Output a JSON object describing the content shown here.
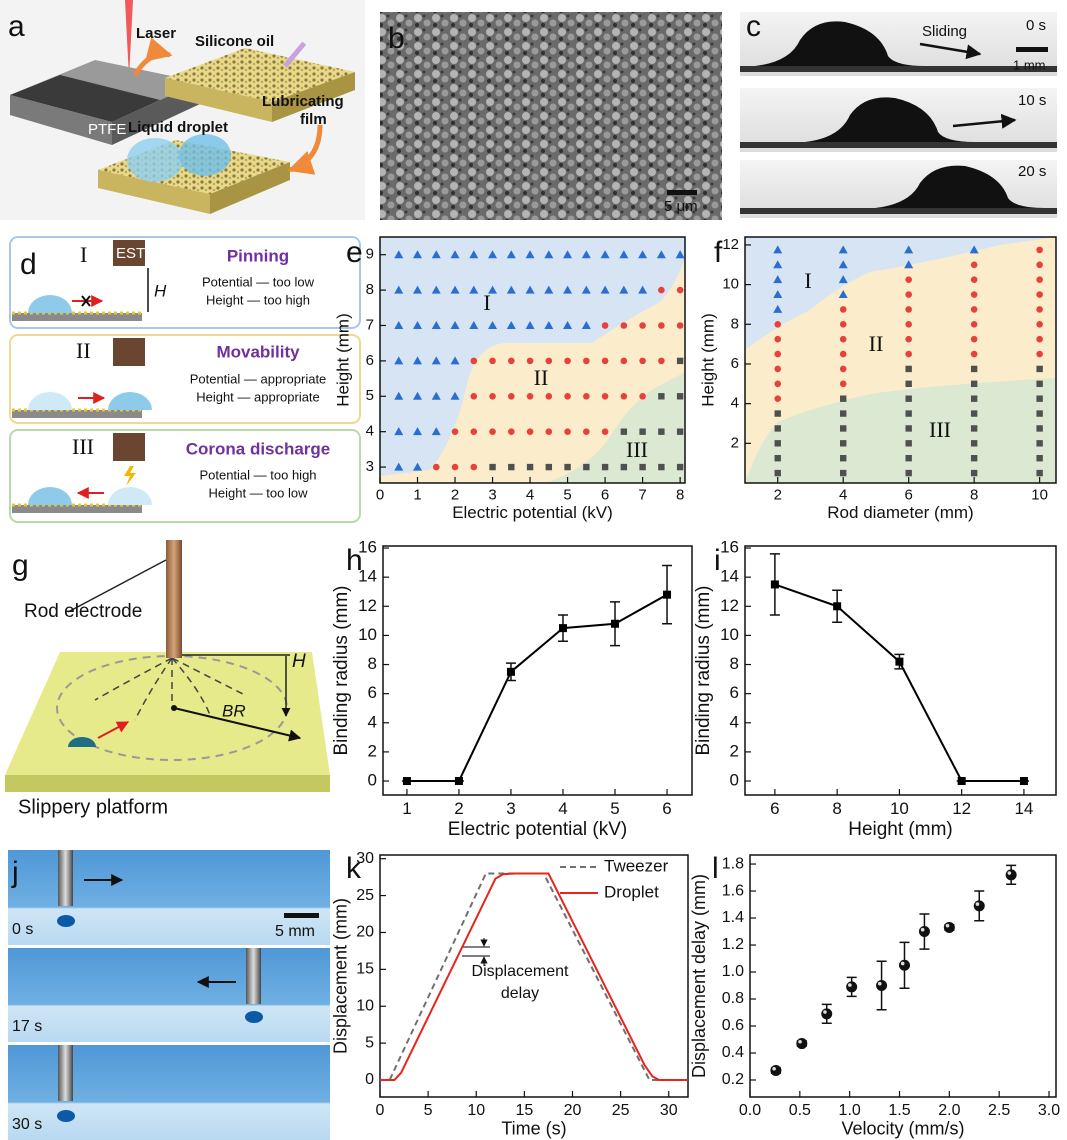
{
  "panel_labels": [
    "a",
    "b",
    "c",
    "d",
    "e",
    "f",
    "g",
    "h",
    "i",
    "j",
    "k",
    "l"
  ],
  "panels": {
    "a": {
      "laser": "Laser",
      "ptfe": "PTFE",
      "oil": "Silicone oil",
      "lubricating": [
        "Lubricating",
        "film"
      ],
      "droplet": "Liquid droplet"
    },
    "b": {
      "scale": "5 μm"
    },
    "c": {
      "sliding": "Sliding",
      "scale": "1 mm",
      "times": [
        "0 s",
        "10 s",
        "20 s"
      ]
    },
    "d": {
      "est": "EST",
      "h": "H",
      "rows": [
        {
          "numeral": "I",
          "title": "Pinning",
          "lines": [
            "Potential — too low",
            "Height — too high"
          ]
        },
        {
          "numeral": "II",
          "title": "Movability",
          "lines": [
            "Potential — appropriate",
            "Height — appropriate"
          ]
        },
        {
          "numeral": "III",
          "title": "Corona discharge",
          "lines": [
            "Potential — too high",
            "Height — too low"
          ]
        }
      ]
    },
    "g": {
      "rod": "Rod electrode",
      "h": "H",
      "br": "BR",
      "platform": "Slippery platform"
    },
    "j": {
      "times": [
        "0 s",
        "17 s",
        "30 s"
      ],
      "scale": "5 mm"
    }
  },
  "chart_data": [
    {
      "type": "scatter",
      "xlabel": "Electric potential (kV)",
      "ylabel": "Height (mm)",
      "xlim": [
        0,
        8.13
      ],
      "ylim": [
        2.55,
        9.5
      ],
      "xticks": [
        0,
        1,
        2,
        3,
        4,
        5,
        6,
        7,
        8
      ],
      "yticks": [
        3,
        4,
        5,
        6,
        7,
        8,
        9
      ],
      "annotations": [
        "I",
        "II",
        "III"
      ],
      "series": [
        {
          "marker": "triangle",
          "color": "#2a6fd0",
          "x": [
            0.5,
            1,
            1.5,
            2,
            2.5,
            3,
            3.5,
            4,
            4.5,
            5,
            5.5,
            6,
            6.5,
            7,
            7.5,
            8,
            0.5,
            1,
            1.5,
            2,
            2.5,
            3,
            3.5,
            4,
            4.5,
            5,
            5.5,
            6,
            6.5,
            7,
            0.5,
            1,
            1.5,
            2,
            2.5,
            3,
            3.5,
            4,
            4.5,
            5,
            5.5,
            0.5,
            1,
            1.5,
            2,
            0.5,
            1,
            1.5,
            2,
            0.5,
            1,
            1.5,
            0.5,
            1
          ],
          "values": [
            9,
            9,
            9,
            9,
            9,
            9,
            9,
            9,
            9,
            9,
            9,
            9,
            9,
            9,
            9,
            9,
            8,
            8,
            8,
            8,
            8,
            8,
            8,
            8,
            8,
            8,
            8,
            8,
            8,
            8,
            7,
            7,
            7,
            7,
            7,
            7,
            7,
            7,
            7,
            7,
            7,
            6,
            6,
            6,
            6,
            5,
            5,
            5,
            5,
            4,
            4,
            4,
            3,
            3
          ]
        },
        {
          "marker": "circle",
          "color": "#e8403a",
          "x": [
            7.5,
            8,
            6,
            6.5,
            7,
            7.5,
            8,
            2.5,
            3,
            3.5,
            4,
            4.5,
            5,
            5.5,
            6,
            6.5,
            7,
            7.5,
            2.5,
            3,
            3.5,
            4,
            4.5,
            5,
            5.5,
            6,
            6.5,
            7,
            2,
            2.5,
            3,
            3.5,
            4,
            4.5,
            5,
            5.5,
            6,
            1.5,
            2,
            2.5
          ],
          "values": [
            8,
            8,
            7,
            7,
            7,
            7,
            7,
            6,
            6,
            6,
            6,
            6,
            6,
            6,
            6,
            6,
            6,
            6,
            5,
            5,
            5,
            5,
            5,
            5,
            5,
            5,
            5,
            5,
            4,
            4,
            4,
            4,
            4,
            4,
            4,
            4,
            4,
            3,
            3,
            3
          ]
        },
        {
          "marker": "square",
          "color": "#505050",
          "x": [
            8,
            7.5,
            8,
            6.5,
            7,
            7.5,
            8,
            3,
            3.5,
            4,
            4.5,
            5,
            5.5,
            6,
            6.5,
            7,
            7.5,
            8
          ],
          "values": [
            6,
            5,
            5,
            4,
            4,
            4,
            4,
            3,
            3,
            3,
            3,
            3,
            3,
            3,
            3,
            3,
            3,
            3
          ]
        }
      ]
    },
    {
      "type": "scatter",
      "xlabel": "Rod diameter (mm)",
      "ylabel": "Height (mm)",
      "xlim": [
        1,
        10.5
      ],
      "ylim": [
        0,
        12.4
      ],
      "xticks": [
        2,
        4,
        6,
        8,
        10
      ],
      "yticks": [
        2,
        4,
        6,
        8,
        10,
        12
      ],
      "annotations": [
        "I",
        "II",
        "III"
      ],
      "series": [
        {
          "marker": "triangle",
          "color": "#2a6fd0",
          "x": [
            2,
            2,
            2,
            2,
            2,
            4,
            4,
            4,
            4,
            6,
            6,
            8
          ],
          "values": [
            8.75,
            9.5,
            10.25,
            11,
            11.75,
            9.5,
            10.25,
            11,
            11.75,
            11,
            11.75,
            11.75
          ]
        },
        {
          "marker": "circle",
          "color": "#e8403a",
          "x": [
            2,
            2,
            2,
            2,
            2,
            2,
            4,
            4,
            4,
            4,
            4,
            4,
            6,
            6,
            6,
            6,
            6,
            6,
            8,
            8,
            8,
            8,
            8,
            8,
            8,
            10,
            10,
            10,
            10,
            10,
            10,
            10,
            10
          ],
          "values": [
            4.25,
            5,
            5.75,
            6.5,
            7.25,
            8,
            5,
            5.75,
            6.5,
            7.25,
            8,
            8.75,
            6.5,
            7.25,
            8,
            8.75,
            9.5,
            10.25,
            6.5,
            7.25,
            8,
            8.75,
            9.5,
            10.25,
            11,
            6.5,
            7.25,
            8,
            8.75,
            9.5,
            10.25,
            11,
            11.75
          ]
        },
        {
          "marker": "square",
          "color": "#505050",
          "x": [
            2,
            2,
            2,
            2,
            2,
            4,
            4,
            4,
            4,
            4,
            4,
            6,
            6,
            6,
            6,
            6,
            6,
            6,
            6,
            8,
            8,
            8,
            8,
            8,
            8,
            8,
            8,
            10,
            10,
            10,
            10,
            10,
            10,
            10,
            10
          ],
          "values": [
            0.5,
            1.25,
            2,
            2.75,
            3.5,
            0.5,
            1.25,
            2,
            2.75,
            3.5,
            4.25,
            0.5,
            1.25,
            2,
            2.75,
            3.5,
            4.25,
            5,
            5.75,
            0.5,
            1.25,
            2,
            2.75,
            3.5,
            4.25,
            5,
            5.75,
            0.5,
            1.25,
            2,
            2.75,
            3.5,
            4.25,
            5,
            5.75
          ]
        }
      ]
    },
    {
      "type": "line",
      "xlabel": "Electric potential (kV)",
      "ylabel": "Binding radius (mm)",
      "xlim": [
        0.54,
        6.48
      ],
      "ylim": [
        -0.96,
        16.14
      ],
      "xticks": [
        1,
        2,
        3,
        4,
        5,
        6
      ],
      "yticks": [
        0,
        2,
        4,
        6,
        8,
        10,
        12,
        14,
        16
      ],
      "series": [
        {
          "marker": "square",
          "color": "#000000",
          "x": [
            1,
            2,
            3,
            4,
            5,
            6
          ],
          "values": [
            0,
            0,
            7.5,
            10.5,
            10.8,
            12.8
          ],
          "errors": [
            0,
            0,
            0.6,
            0.9,
            1.5,
            2.0
          ]
        }
      ]
    },
    {
      "type": "line",
      "xlabel": "Height (mm)",
      "ylabel": "Binding radius (mm)",
      "xlim": [
        5.04,
        15.03
      ],
      "ylim": [
        -0.96,
        16.14
      ],
      "xticks": [
        6,
        8,
        10,
        12,
        14
      ],
      "yticks": [
        0,
        2,
        4,
        6,
        8,
        10,
        12,
        14,
        16
      ],
      "series": [
        {
          "marker": "square",
          "color": "#000000",
          "x": [
            6,
            8,
            10,
            12,
            14
          ],
          "values": [
            13.5,
            12,
            8.2,
            0,
            0
          ],
          "errors": [
            2.1,
            1.1,
            0.5,
            0,
            0
          ]
        }
      ]
    },
    {
      "type": "line",
      "xlabel": "Time (s)",
      "ylabel": "Displacement (mm)",
      "xlim": [
        0,
        32
      ],
      "ylim": [
        -2.3,
        30.5
      ],
      "xticks": [
        0,
        5,
        10,
        15,
        20,
        25,
        30
      ],
      "yticks": [
        0,
        5,
        10,
        15,
        20,
        25,
        30
      ],
      "legend": "upper right",
      "annotations": [
        "Displacement",
        "delay"
      ],
      "series": [
        {
          "name": "Tweezer",
          "color": "#707070",
          "dashed": true,
          "x": [
            0,
            1,
            11,
            17,
            28,
            32
          ],
          "values": [
            0,
            0,
            28,
            28,
            0,
            0
          ]
        },
        {
          "name": "Droplet",
          "color": "#e8241c",
          "x": [
            0,
            1.5,
            2.2,
            12,
            12.8,
            14,
            17.5,
            27.5,
            28.3,
            29,
            32
          ],
          "values": [
            0,
            0,
            1,
            27.3,
            27.9,
            28,
            28,
            2,
            0.5,
            0,
            0
          ]
        }
      ]
    },
    {
      "type": "scatter",
      "xlabel": "Velocity (mm/s)",
      "ylabel": "Displacement delay (mm)",
      "xlim": [
        0,
        3.07
      ],
      "ylim": [
        0.074,
        1.867
      ],
      "xticks": [
        {
          "value": 0,
          "label": "0.0"
        },
        0.5,
        {
          "value": 1,
          "label": "1.0"
        },
        1.5,
        {
          "value": 2,
          "label": "2.0"
        },
        2.5,
        {
          "value": 3,
          "label": "3.0"
        }
      ],
      "yticks": [
        0.2,
        0.4,
        0.6,
        0.8,
        {
          "value": 1,
          "label": "1.0"
        },
        1.2,
        1.4,
        1.6,
        1.8
      ],
      "series": [
        {
          "marker": "sphere",
          "color": "#111111",
          "x": [
            0.26,
            0.52,
            0.77,
            1.02,
            1.32,
            1.55,
            1.75,
            2.0,
            2.3,
            2.62
          ],
          "values": [
            0.27,
            0.47,
            0.69,
            0.89,
            0.9,
            1.05,
            1.3,
            1.33,
            1.49,
            1.72
          ],
          "errors": [
            0.02,
            0.02,
            0.07,
            0.07,
            0.18,
            0.17,
            0.13,
            0.02,
            0.11,
            0.07
          ]
        }
      ]
    }
  ]
}
